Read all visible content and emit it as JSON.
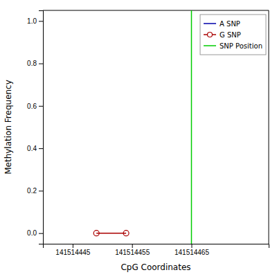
{
  "chart_data": {
    "type": "line",
    "xlabel": "CpG Coordinates",
    "ylabel": "Methylation Frequency",
    "series": [
      {
        "name": "A SNP",
        "color": "#0000aa",
        "x": [],
        "values": []
      },
      {
        "name": "G SNP",
        "color": "#aa0000",
        "marker": "circle",
        "x": [
          141514449,
          141514454
        ],
        "values": [
          0.0,
          0.0
        ]
      },
      {
        "name": "SNP Position",
        "color": "#00cc00",
        "type": "vline",
        "x": [
          141514465
        ]
      }
    ],
    "xlim": [
      141514440,
      141514478
    ],
    "ylim": [
      -0.05,
      1.05
    ],
    "xticks": [
      141514445,
      141514455,
      141514465
    ],
    "yticks": [
      {
        "value": 0.0,
        "label": "0.0"
      },
      {
        "value": 0.2,
        "label": "0.2"
      },
      {
        "value": 0.4,
        "label": "0.4"
      },
      {
        "value": 0.6,
        "label": "0.6"
      },
      {
        "value": 0.8,
        "label": "0.8"
      },
      {
        "value": 1.0,
        "label": "1.0"
      }
    ],
    "grid": false,
    "legend": "upper right"
  }
}
